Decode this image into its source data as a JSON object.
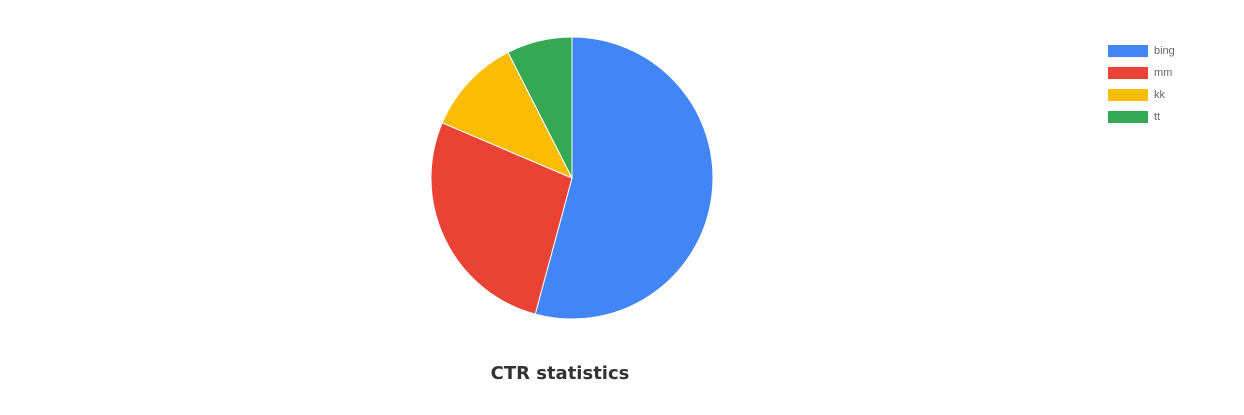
{
  "chart_data": {
    "type": "pie",
    "title": "CTR statistics",
    "categories": [
      "bing",
      "mm",
      "kk",
      "tt"
    ],
    "values": [
      54.2,
      27.2,
      11.1,
      7.5
    ],
    "colors": [
      "#4285f4",
      "#ea4335",
      "#fbbc04",
      "#34a853"
    ],
    "legend": "top-right"
  }
}
